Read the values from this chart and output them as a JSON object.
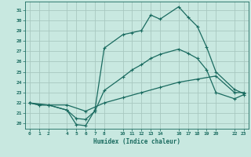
{
  "title": "",
  "xlabel": "Humidex (Indice chaleur)",
  "bg_color": "#c8e8e0",
  "grid_color": "#a8c8c0",
  "line_color": "#1a6b60",
  "xticks": [
    0,
    1,
    2,
    4,
    5,
    6,
    7,
    8,
    10,
    11,
    12,
    13,
    14,
    16,
    17,
    18,
    19,
    20,
    22,
    23
  ],
  "yticks": [
    20,
    21,
    22,
    23,
    24,
    25,
    26,
    27,
    28,
    29,
    30,
    31
  ],
  "ylim": [
    19.5,
    31.8
  ],
  "xlim": [
    -0.5,
    23.5
  ],
  "line1_x": [
    0,
    1,
    2,
    4,
    5,
    6,
    7,
    8,
    10,
    11,
    12,
    13,
    14,
    16,
    17,
    18,
    19,
    20,
    22,
    23
  ],
  "line1_y": [
    22.0,
    21.8,
    21.8,
    21.3,
    19.9,
    19.8,
    21.3,
    27.3,
    28.6,
    28.8,
    29.0,
    30.5,
    30.1,
    31.3,
    30.3,
    29.4,
    27.4,
    25.0,
    23.3,
    22.9
  ],
  "line2_x": [
    0,
    1,
    2,
    4,
    5,
    6,
    7,
    8,
    10,
    11,
    12,
    13,
    14,
    16,
    17,
    18,
    19,
    20,
    22,
    23
  ],
  "line2_y": [
    22.0,
    21.8,
    21.8,
    21.3,
    20.5,
    20.4,
    21.2,
    23.2,
    24.5,
    25.2,
    25.7,
    26.3,
    26.7,
    27.2,
    26.8,
    26.3,
    25.2,
    23.0,
    22.4,
    22.8
  ],
  "line3_x": [
    0,
    2,
    4,
    6,
    8,
    10,
    12,
    14,
    16,
    18,
    20,
    22,
    23
  ],
  "line3_y": [
    22.0,
    21.8,
    21.8,
    21.2,
    22.0,
    22.5,
    23.0,
    23.5,
    24.0,
    24.3,
    24.6,
    23.0,
    23.0
  ]
}
